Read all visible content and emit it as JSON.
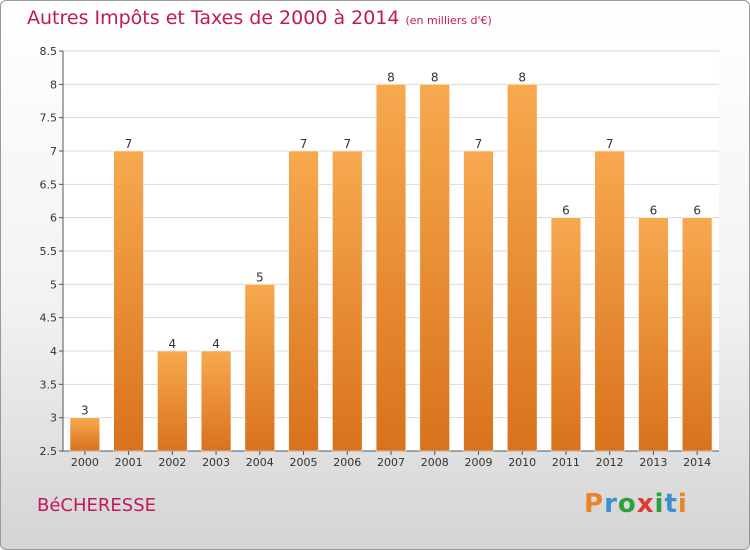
{
  "title": "Autres Impôts et Taxes de 2000 à 2014",
  "subtitle": "(en milliers d'€)",
  "place": "BéCHERESSE",
  "logo_text": "Proxiti",
  "colors": {
    "title": "#c2185b",
    "bar_light": "#f7a94f",
    "bar_dark": "#d9721c",
    "grid": "#d9d9d9",
    "logo_letters": [
      "#e8852a",
      "#3d8fd1",
      "#2e9f3e",
      "#e03a2f",
      "#2e9f3e",
      "#3d8fd1",
      "#e8852a"
    ]
  },
  "chart_data": {
    "type": "bar",
    "title": "Autres Impôts et Taxes de 2000 à 2014",
    "subtitle": "(en milliers d'€)",
    "categories": [
      "2000",
      "2001",
      "2002",
      "2003",
      "2004",
      "2005",
      "2006",
      "2007",
      "2008",
      "2009",
      "2010",
      "2011",
      "2012",
      "2013",
      "2014"
    ],
    "values": [
      3,
      7,
      4,
      4,
      5,
      7,
      7,
      8,
      8,
      7,
      8,
      6,
      7,
      6,
      6
    ],
    "data_labels": [
      "3",
      "7",
      "4",
      "4",
      "5",
      "7",
      "7",
      "8",
      "8",
      "7",
      "8",
      "6",
      "7",
      "6",
      "6"
    ],
    "ylim": [
      2.5,
      8.5
    ],
    "yticks": [
      "2.5",
      "3",
      "3.5",
      "4",
      "4.5",
      "5",
      "5.5",
      "6",
      "6.5",
      "7",
      "7.5",
      "8",
      "8.5"
    ],
    "xlabel": "",
    "ylabel": "",
    "grid": true,
    "legend": false
  }
}
